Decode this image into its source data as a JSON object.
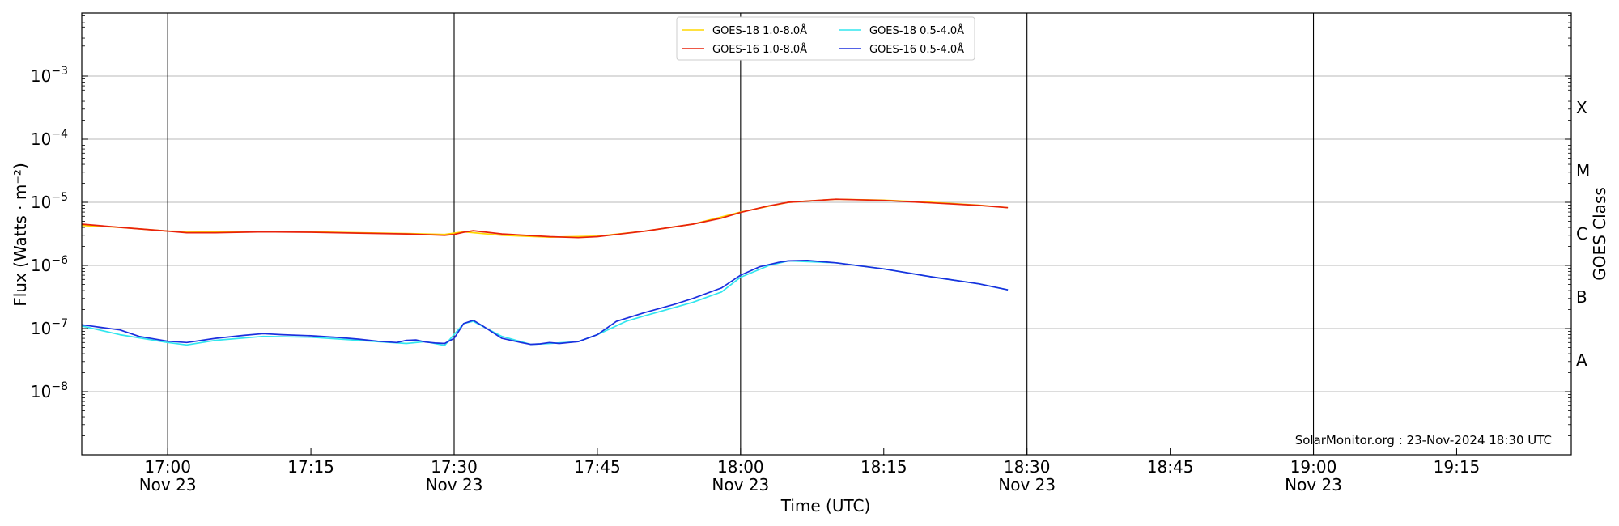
{
  "chart_data": {
    "type": "line",
    "xlabel": "Time (UTC)",
    "ylabel": "Flux (Watts · m⁻²)",
    "y2label": "GOES Class",
    "yscale": "log",
    "ylim": [
      1e-09,
      0.01
    ],
    "xlim": [
      "16:51",
      "19:27"
    ],
    "x_ticks": [
      {
        "time": "17:00",
        "label": "17:00",
        "date": "Nov 23"
      },
      {
        "time": "17:15",
        "label": "17:15",
        "date": ""
      },
      {
        "time": "17:30",
        "label": "17:30",
        "date": "Nov 23"
      },
      {
        "time": "17:45",
        "label": "17:45",
        "date": ""
      },
      {
        "time": "18:00",
        "label": "18:00",
        "date": "Nov 23"
      },
      {
        "time": "18:15",
        "label": "18:15",
        "date": ""
      },
      {
        "time": "18:30",
        "label": "18:30",
        "date": "Nov 23"
      },
      {
        "time": "18:45",
        "label": "18:45",
        "date": ""
      },
      {
        "time": "19:00",
        "label": "19:00",
        "date": "Nov 23"
      },
      {
        "time": "19:15",
        "label": "19:15",
        "date": ""
      }
    ],
    "y_ticks": [
      {
        "value": 1e-08,
        "base": "10",
        "exp": "−8"
      },
      {
        "value": 1e-07,
        "base": "10",
        "exp": "−7"
      },
      {
        "value": 1e-06,
        "base": "10",
        "exp": "−6"
      },
      {
        "value": 1e-05,
        "base": "10",
        "exp": "−5"
      },
      {
        "value": 0.0001,
        "base": "10",
        "exp": "−4"
      },
      {
        "value": 0.001,
        "base": "10",
        "exp": "−3"
      }
    ],
    "goes_classes": [
      {
        "label": "A",
        "value": 3.16e-08
      },
      {
        "label": "B",
        "value": 3.16e-07
      },
      {
        "label": "C",
        "value": 3.16e-06
      },
      {
        "label": "M",
        "value": 3.16e-05
      },
      {
        "label": "X",
        "value": 0.000316
      }
    ],
    "vertical_lines": [
      "17:00",
      "17:30",
      "18:00",
      "18:30",
      "19:00"
    ],
    "grid": "horizontal at decades",
    "legend": {
      "placement": "top-center",
      "columns": 2
    },
    "annotation": "SolarMonitor.org : 23-Nov-2024 18:30 UTC",
    "series": [
      {
        "name": "GOES-18 1.0-8.0Å",
        "color": "#ffd700",
        "x": [
          "16:51",
          "16:55",
          "17:00",
          "17:05",
          "17:10",
          "17:15",
          "17:20",
          "17:25",
          "17:29",
          "17:31",
          "17:35",
          "17:40",
          "17:45",
          "17:50",
          "17:55",
          "18:00",
          "18:05",
          "18:10",
          "18:15",
          "18:20",
          "18:25",
          "18:28"
        ],
        "values": [
          4.3e-06,
          4e-06,
          3.5e-06,
          3.4e-06,
          3.45e-06,
          3.4e-06,
          3.3e-06,
          3.2e-06,
          3.1e-06,
          3.4e-06,
          3e-06,
          2.8e-06,
          2.9e-06,
          3.5e-06,
          4.5e-06,
          7e-06,
          1e-05,
          1.12e-05,
          1.08e-05,
          1e-05,
          9e-06,
          8.2e-06
        ]
      },
      {
        "name": "GOES-16 1.0-8.0Å",
        "color": "#e8220c",
        "x": [
          "16:51",
          "16:55",
          "17:00",
          "17:02",
          "17:05",
          "17:10",
          "17:15",
          "17:20",
          "17:25",
          "17:29",
          "17:30",
          "17:31",
          "17:32",
          "17:35",
          "17:40",
          "17:43",
          "17:45",
          "17:50",
          "17:55",
          "17:58",
          "18:00",
          "18:03",
          "18:05",
          "18:10",
          "18:15",
          "18:20",
          "18:25",
          "18:28"
        ],
        "values": [
          4.5e-06,
          4e-06,
          3.5e-06,
          3.3e-06,
          3.3e-06,
          3.4e-06,
          3.35e-06,
          3.25e-06,
          3.15e-06,
          3e-06,
          3.1e-06,
          3.35e-06,
          3.55e-06,
          3.15e-06,
          2.85e-06,
          2.75e-06,
          2.85e-06,
          3.5e-06,
          4.5e-06,
          5.6e-06,
          6.9e-06,
          8.8e-06,
          1e-05,
          1.12e-05,
          1.07e-05,
          9.8e-06,
          8.9e-06,
          8.2e-06
        ]
      },
      {
        "name": "GOES-18 0.5-4.0Å",
        "color": "#32e6ee",
        "x": [
          "16:51",
          "16:55",
          "17:00",
          "17:02",
          "17:05",
          "17:10",
          "17:15",
          "17:20",
          "17:25",
          "17:27",
          "17:29",
          "17:31",
          "17:32",
          "17:35",
          "17:38",
          "17:40",
          "17:43",
          "17:45",
          "17:48",
          "17:50",
          "17:55",
          "17:58",
          "18:00",
          "18:03",
          "18:05",
          "18:10",
          "18:15",
          "18:20",
          "18:25",
          "18:28"
        ],
        "values": [
          1.1e-07,
          8e-08,
          6e-08,
          5.5e-08,
          6.5e-08,
          7.5e-08,
          7.3e-08,
          6.5e-08,
          5.8e-08,
          6.2e-08,
          5.4e-08,
          1.2e-07,
          1.3e-07,
          7.5e-08,
          5.6e-08,
          5.8e-08,
          6.2e-08,
          8e-08,
          1.3e-07,
          1.6e-07,
          2.6e-07,
          3.8e-07,
          6.5e-07,
          1e-06,
          1.18e-06,
          1.1e-06,
          8.8e-07,
          6.6e-07,
          5.1e-07,
          4.1e-07
        ]
      },
      {
        "name": "GOES-16 0.5-4.0Å",
        "color": "#1b2fde",
        "x": [
          "16:51",
          "16:55",
          "16:57",
          "17:00",
          "17:02",
          "17:05",
          "17:08",
          "17:10",
          "17:12",
          "17:15",
          "17:18",
          "17:20",
          "17:22",
          "17:24",
          "17:25",
          "17:26",
          "17:27",
          "17:28",
          "17:29",
          "17:30",
          "17:31",
          "17:32",
          "17:33",
          "17:35",
          "17:37",
          "17:38",
          "17:39",
          "17:40",
          "17:41",
          "17:43",
          "17:45",
          "17:47",
          "17:50",
          "17:53",
          "17:55",
          "17:58",
          "18:00",
          "18:02",
          "18:04",
          "18:05",
          "18:07",
          "18:10",
          "18:15",
          "18:20",
          "18:25",
          "18:28"
        ],
        "values": [
          1.15e-07,
          9.5e-08,
          7.5e-08,
          6.3e-08,
          6e-08,
          7e-08,
          7.8e-08,
          8.3e-08,
          8e-08,
          7.7e-08,
          7.2e-08,
          6.8e-08,
          6.3e-08,
          6e-08,
          6.5e-08,
          6.6e-08,
          6.1e-08,
          5.9e-08,
          5.8e-08,
          7e-08,
          1.2e-07,
          1.35e-07,
          1.1e-07,
          7e-08,
          6e-08,
          5.6e-08,
          5.7e-08,
          6e-08,
          5.8e-08,
          6.2e-08,
          8e-08,
          1.3e-07,
          1.8e-07,
          2.4e-07,
          3e-07,
          4.4e-07,
          7e-07,
          9.5e-07,
          1.12e-06,
          1.18e-06,
          1.2e-06,
          1.1e-06,
          8.8e-07,
          6.6e-07,
          5.1e-07,
          4.1e-07
        ]
      }
    ]
  }
}
